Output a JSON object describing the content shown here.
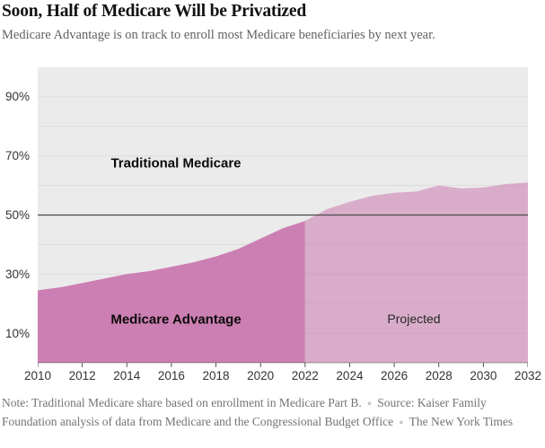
{
  "header": {
    "title": "Soon, Half of Medicare Will be Privatized",
    "subtitle": "Medicare Advantage is on track to enroll most Medicare beneficiaries by next year."
  },
  "chart_data": {
    "type": "area",
    "xlim": [
      2010,
      2032
    ],
    "ylim": [
      0,
      100
    ],
    "x_ticks": [
      2010,
      2012,
      2014,
      2016,
      2018,
      2020,
      2022,
      2024,
      2026,
      2028,
      2030,
      2032
    ],
    "y_ticks": [
      {
        "value": 90,
        "label": "90%"
      },
      {
        "value": 70,
        "label": "70%"
      },
      {
        "value": 50,
        "label": "50%"
      },
      {
        "value": 30,
        "label": "30%"
      },
      {
        "value": 10,
        "label": "10%"
      }
    ],
    "y_gridlines": [
      10,
      20,
      30,
      40,
      50,
      60,
      70,
      80,
      90
    ],
    "reference_line": 50,
    "grid": true,
    "series": [
      {
        "name": "Medicare Advantage share of Medicare enrollment (actual)",
        "x": [
          2010,
          2011,
          2012,
          2013,
          2014,
          2015,
          2016,
          2017,
          2018,
          2019,
          2020,
          2021,
          2022
        ],
        "y": [
          24.5,
          25.5,
          27,
          28.5,
          30,
          31,
          32.5,
          34,
          36,
          38.5,
          42,
          45.5,
          48
        ]
      },
      {
        "name": "Medicare Advantage share of Medicare enrollment (projected)",
        "x": [
          2022,
          2023,
          2024,
          2025,
          2026,
          2027,
          2028,
          2029,
          2030,
          2031,
          2032
        ],
        "y": [
          48,
          52,
          54.5,
          56.5,
          57.5,
          58,
          60,
          59,
          59.3,
          60.5,
          61
        ]
      }
    ],
    "area_labels": {
      "traditional": "Traditional Medicare",
      "advantage": "Medicare Advantage",
      "projected": "Projected"
    }
  },
  "colors": {
    "plot_bg": "#ebebeb",
    "gridline": "#dcdcdc",
    "area_actual": "#cc7fb2",
    "projected_opacity": 0.58,
    "reference_line": "#4a4a4a",
    "axis_line": "rgba(0,0,0,0.34)",
    "tick": "#555555",
    "tick_label": "#333333"
  },
  "footer": {
    "note": "Note: Traditional Medicare share based on enrollment in Medicare Part B.",
    "source": "Source: Kaiser Family Foundation analysis of data from Medicare and the Congressional Budget Office",
    "credit": "The New York Times",
    "separator": "●"
  }
}
